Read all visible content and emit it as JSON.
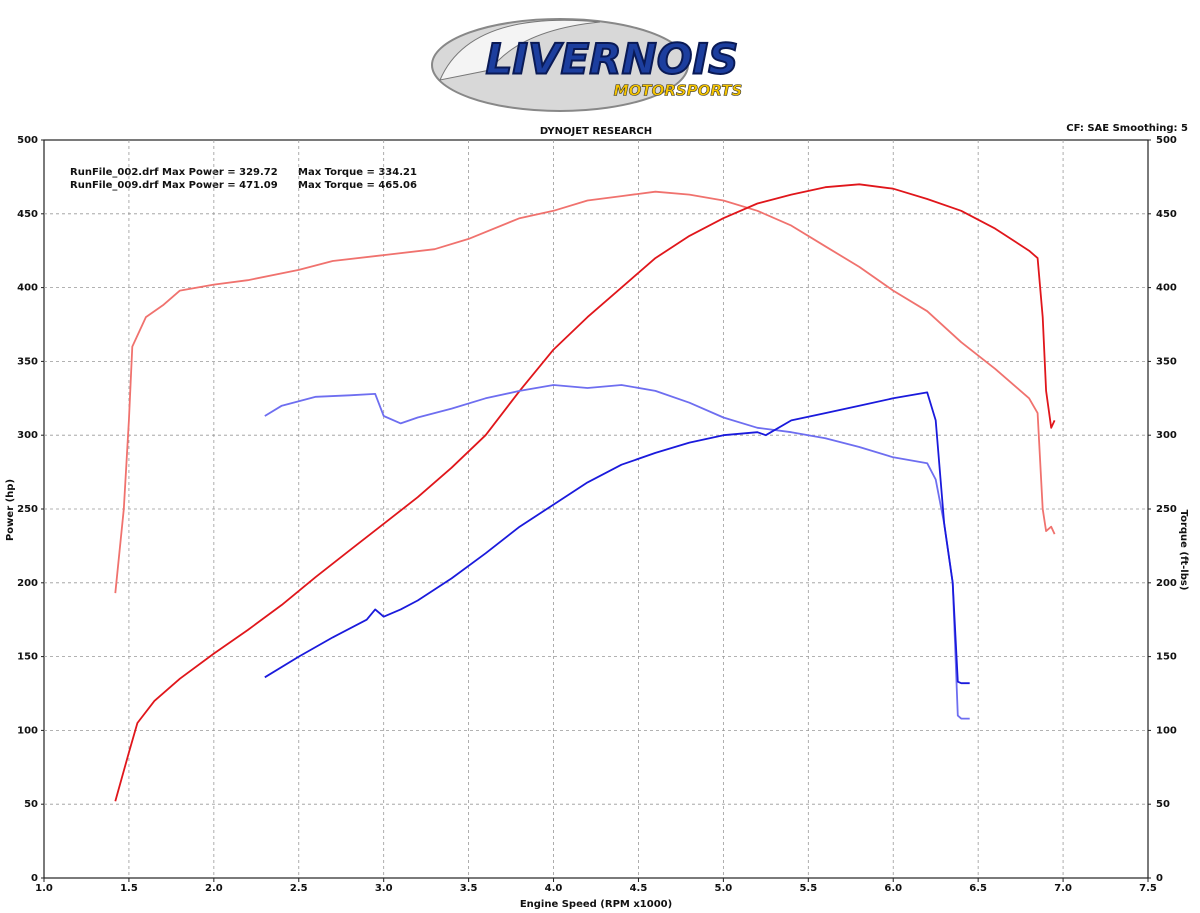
{
  "logo": {
    "line1": "LIVERNOIS",
    "line2": "MOTORSPORTS"
  },
  "chart_data": {
    "type": "line",
    "title": "DYNOJET RESEARCH",
    "subtitle": "CF: SAE  Smoothing: 5",
    "annotations": [
      "RunFile_002.drf Max Power = 329.72",
      "Max Torque = 334.21",
      "RunFile_009.drf Max Power = 471.09",
      "Max Torque = 465.06"
    ],
    "xlabel": "Engine Speed (RPM x1000)",
    "ylabel": "Power (hp)",
    "y2label": "Torque (ft-lbs)",
    "xlim": [
      1,
      7.5
    ],
    "xticks": [
      {
        "value": 1,
        "label": "1.0"
      },
      1.5,
      {
        "value": 2,
        "label": "2.0"
      },
      2.5,
      {
        "value": 3,
        "label": "3.0"
      },
      3.5,
      {
        "value": 4,
        "label": "4.0"
      },
      4.5,
      {
        "value": 5,
        "label": "5.0"
      },
      5.5,
      {
        "value": 6,
        "label": "6.0"
      },
      6.5,
      {
        "value": 7,
        "label": "7.0"
      },
      7.5
    ],
    "ylim": [
      0,
      500
    ],
    "yticks": [
      0,
      50,
      100,
      150,
      200,
      250,
      300,
      350,
      400,
      450,
      500
    ],
    "y2lim": [
      0,
      500
    ],
    "y2ticks": [
      0,
      50,
      100,
      150,
      200,
      250,
      300,
      350,
      400,
      450,
      500
    ],
    "grid": true,
    "series": [
      {
        "color": "#f0726e",
        "axis": "y2",
        "x": [
          1.42,
          1.47,
          1.5,
          1.52,
          1.6,
          1.7,
          1.8,
          2.0,
          2.2,
          2.5,
          2.7,
          3.0,
          3.3,
          3.5,
          3.8,
          4.0,
          4.2,
          4.4,
          4.6,
          4.8,
          5.0,
          5.2,
          5.4,
          5.6,
          5.8,
          6.0,
          6.2,
          6.4,
          6.6,
          6.8,
          6.85,
          6.88,
          6.9,
          6.93,
          6.95
        ],
        "values": [
          193,
          250,
          310,
          360,
          380,
          388,
          398,
          402,
          405,
          412,
          418,
          422,
          426,
          433,
          447,
          452,
          459,
          462,
          465,
          463,
          459,
          452,
          442,
          428,
          414,
          398,
          384,
          363,
          345,
          325,
          315,
          250,
          235,
          238,
          233
        ]
      },
      {
        "color": "#e0161b",
        "x": [
          1.42,
          1.5,
          1.55,
          1.65,
          1.8,
          2.0,
          2.2,
          2.4,
          2.6,
          2.8,
          3.0,
          3.2,
          3.4,
          3.6,
          3.8,
          4.0,
          4.2,
          4.4,
          4.6,
          4.8,
          5.0,
          5.2,
          5.4,
          5.6,
          5.8,
          6.0,
          6.2,
          6.4,
          6.6,
          6.8,
          6.85,
          6.88,
          6.9,
          6.93,
          6.95
        ],
        "values": [
          52,
          85,
          105,
          120,
          135,
          152,
          168,
          185,
          204,
          222,
          240,
          258,
          278,
          300,
          330,
          358,
          380,
          400,
          420,
          435,
          447,
          457,
          463,
          468,
          470,
          467,
          460,
          452,
          440,
          425,
          420,
          380,
          330,
          305,
          310
        ]
      },
      {
        "color": "#6e6ef0",
        "axis": "y2",
        "x": [
          2.3,
          2.4,
          2.6,
          2.8,
          2.95,
          3.0,
          3.1,
          3.2,
          3.4,
          3.6,
          3.8,
          4.0,
          4.2,
          4.4,
          4.6,
          4.8,
          5.0,
          5.2,
          5.4,
          5.6,
          5.8,
          6.0,
          6.2,
          6.25,
          6.3,
          6.35,
          6.38,
          6.4,
          6.45
        ],
        "values": [
          313,
          320,
          326,
          327,
          328,
          313,
          308,
          312,
          318,
          325,
          330,
          334,
          332,
          334,
          330,
          322,
          312,
          305,
          302,
          298,
          292,
          285,
          281,
          270,
          240,
          200,
          110,
          108,
          108
        ]
      },
      {
        "color": "#1a1adc",
        "x": [
          2.3,
          2.5,
          2.7,
          2.9,
          2.95,
          3.0,
          3.1,
          3.2,
          3.4,
          3.6,
          3.8,
          4.0,
          4.2,
          4.4,
          4.6,
          4.8,
          5.0,
          5.2,
          5.25,
          5.4,
          5.6,
          5.8,
          6.0,
          6.2,
          6.25,
          6.3,
          6.35,
          6.38,
          6.4,
          6.45
        ],
        "values": [
          136,
          150,
          163,
          175,
          182,
          177,
          182,
          188,
          203,
          220,
          238,
          253,
          268,
          280,
          288,
          295,
          300,
          302,
          300,
          310,
          315,
          320,
          325,
          329,
          310,
          240,
          200,
          133,
          132,
          132
        ]
      }
    ]
  }
}
